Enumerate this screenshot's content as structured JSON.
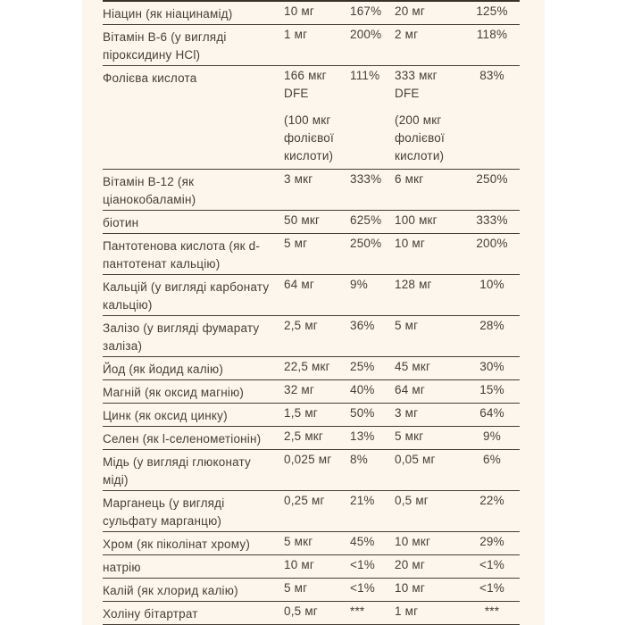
{
  "colors": {
    "page_background": "#ffffff",
    "panel_background": "#fcf6ed",
    "text": "#473f37",
    "rule_line": "#453d34"
  },
  "table": {
    "rows": [
      {
        "name": "Ніацин (як ніацинамід)",
        "amount1": "10 мг",
        "amount1_note": "",
        "dv1": "167%",
        "amount2": "20 мг",
        "amount2_note": "",
        "dv2": "125%"
      },
      {
        "name": "Вітамін B-6 (у вигляді піроксидину HCl)",
        "amount1": "1 мг",
        "amount1_note": "",
        "dv1": "200%",
        "amount2": "2 мг",
        "amount2_note": "",
        "dv2": "118%"
      },
      {
        "name": "Фолієва кислота",
        "amount1": "166 мкг DFE",
        "amount1_note": "(100 мкг фолієвої кислоти)",
        "dv1": "111%",
        "amount2": "333 мкг DFE",
        "amount2_note": "(200 мкг фолієвої кислоти)",
        "dv2": "83%"
      },
      {
        "name": "Вітамін B-12 (як ціанокобаламін)",
        "amount1": "3 мкг",
        "amount1_note": "",
        "dv1": "333%",
        "amount2": "6 мкг",
        "amount2_note": "",
        "dv2": "250%"
      },
      {
        "name": "біотин",
        "amount1": "50 мкг",
        "amount1_note": "",
        "dv1": "625%",
        "amount2": "100 мкг",
        "amount2_note": "",
        "dv2": "333%"
      },
      {
        "name": "Пантотенова кислота (як d-пантотенат кальцію)",
        "amount1": "5 мг",
        "amount1_note": "",
        "dv1": "250%",
        "amount2": "10 мг",
        "amount2_note": "",
        "dv2": "200%"
      },
      {
        "name": "Кальцій (у вигляді карбонату кальцію)",
        "amount1": "64 мг",
        "amount1_note": "",
        "dv1": "9%",
        "amount2": "128 мг",
        "amount2_note": "",
        "dv2": "10%"
      },
      {
        "name": "Залізо (у вигляді фумарату заліза)",
        "amount1": "2,5 мг",
        "amount1_note": "",
        "dv1": "36%",
        "amount2": "5 мг",
        "amount2_note": "",
        "dv2": "28%"
      },
      {
        "name": "Йод (як йодид калію)",
        "amount1": "22,5 мкг",
        "amount1_note": "",
        "dv1": "25%",
        "amount2": "45 мкг",
        "amount2_note": "",
        "dv2": "30%"
      },
      {
        "name": "Магній (як оксид магнію)",
        "amount1": "32 мг",
        "amount1_note": "",
        "dv1": "40%",
        "amount2": "64 мг",
        "amount2_note": "",
        "dv2": "15%"
      },
      {
        "name": "Цинк (як оксид цинку)",
        "amount1": "1,5 мг",
        "amount1_note": "",
        "dv1": "50%",
        "amount2": "3 мг",
        "amount2_note": "",
        "dv2": "64%"
      },
      {
        "name": "Селен (як l-селенометіонін)",
        "amount1": "2,5 мкг",
        "amount1_note": "",
        "dv1": "13%",
        "amount2": "5 мкг",
        "amount2_note": "",
        "dv2": "9%"
      },
      {
        "name": "Мідь (у вигляді глюконату міді)",
        "amount1": "0,025 мг",
        "amount1_note": "",
        "dv1": "8%",
        "amount2": "0,05 мг",
        "amount2_note": "",
        "dv2": "6%"
      },
      {
        "name": "Марганець (у вигляді сульфату марганцю)",
        "amount1": "0,25 мг",
        "amount1_note": "",
        "dv1": "21%",
        "amount2": "0,5 мг",
        "amount2_note": "",
        "dv2": "22%"
      },
      {
        "name": "Хром (як піколінат хрому)",
        "amount1": "5 мкг",
        "amount1_note": "",
        "dv1": "45%",
        "amount2": "10 мкг",
        "amount2_note": "",
        "dv2": "29%"
      },
      {
        "name": "натрію",
        "amount1": "10 мг",
        "amount1_note": "",
        "dv1": "<1%",
        "amount2": "20 мг",
        "amount2_note": "",
        "dv2": "<1%"
      },
      {
        "name": "Калій (як хлорид калію)",
        "amount1": "5 мг",
        "amount1_note": "",
        "dv1": "<1%",
        "amount2": "10 мг",
        "amount2_note": "",
        "dv2": "<1%"
      },
      {
        "name": "Холіну бітартрат",
        "amount1": "0,5 мг",
        "amount1_note": "",
        "dv1": "***",
        "amount2": "1 мг",
        "amount2_note": "",
        "dv2": "***"
      }
    ]
  }
}
